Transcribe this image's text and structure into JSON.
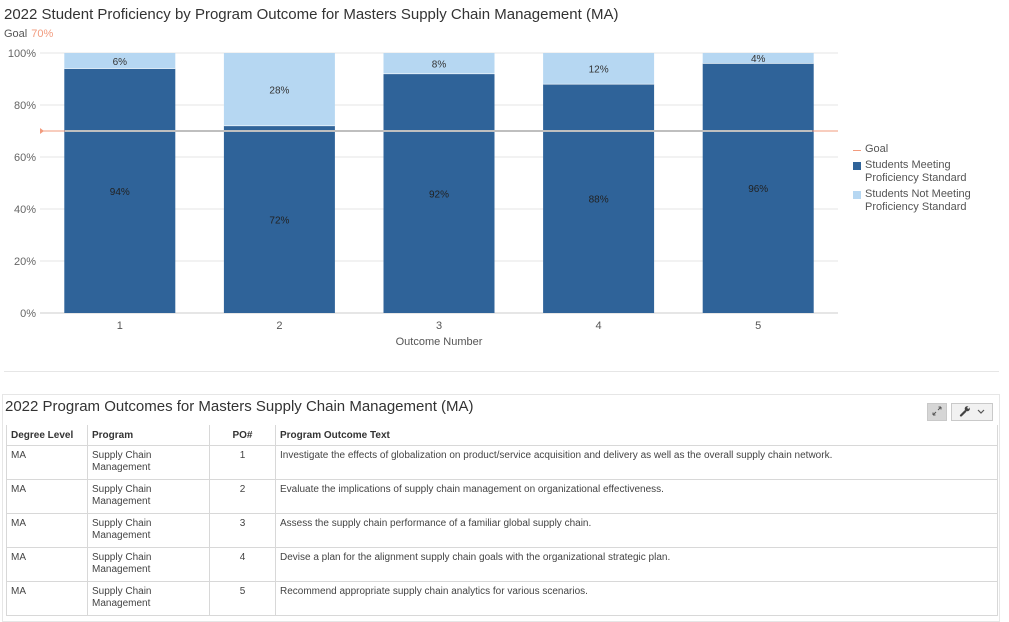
{
  "chart_title": "2022 Student Proficiency by Program Outcome for Masters Supply Chain Management (MA)",
  "goal_caption": {
    "label": "Goal",
    "value": "70%"
  },
  "chart_data": {
    "type": "bar",
    "stacked": true,
    "categories": [
      "1",
      "2",
      "3",
      "4",
      "5"
    ],
    "series": [
      {
        "name": "Students Meeting Proficiency Standard",
        "color": "#2f6399",
        "values": [
          94,
          72,
          92,
          88,
          96
        ],
        "labels": [
          "94%",
          "72%",
          "92%",
          "88%",
          "96%"
        ]
      },
      {
        "name": "Students Not Meeting Proficiency Standard",
        "color": "#b6d7f2",
        "values": [
          6,
          28,
          8,
          12,
          4
        ],
        "labels": [
          "6%",
          "28%",
          "8%",
          "12%",
          "4%"
        ]
      }
    ],
    "goal": {
      "name": "Goal",
      "value": 70,
      "color": "#f29b7e"
    },
    "xlabel": "Outcome Number",
    "ylabel": "",
    "ylim": [
      0,
      100
    ],
    "yticks": [
      0,
      20,
      40,
      60,
      80,
      100
    ],
    "ytick_labels": [
      "0%",
      "20%",
      "40%",
      "60%",
      "80%",
      "100%"
    ],
    "grid": true,
    "legend_position": "right"
  },
  "legend": {
    "goal": "Goal",
    "meeting": "Students Meeting Proficiency Standard",
    "not_meeting": "Students Not Meeting Proficiency Standard"
  },
  "table": {
    "title": "2022 Program Outcomes for Masters Supply Chain Management (MA)",
    "columns": [
      "Degree Level",
      "Program",
      "PO#",
      "Program Outcome Text"
    ],
    "rows": [
      [
        "MA",
        "Supply Chain Management",
        "1",
        "Investigate the effects of globalization on product/service acquisition and delivery as well as the overall supply chain network."
      ],
      [
        "MA",
        "Supply Chain Management",
        "2",
        "Evaluate the implications of supply chain management on organizational effectiveness."
      ],
      [
        "MA",
        "Supply Chain Management",
        "3",
        "Assess the supply chain performance of a familiar global supply chain."
      ],
      [
        "MA",
        "Supply Chain Management",
        "4",
        "Devise a plan for the alignment supply chain goals with the organizational strategic plan."
      ],
      [
        "MA",
        "Supply Chain Management",
        "5",
        "Recommend appropriate supply chain analytics for various scenarios."
      ]
    ],
    "toolbar": {
      "expand_icon": "expand-icon",
      "wrench_icon": "wrench-icon",
      "chevron_icon": "chevron-down-icon"
    }
  }
}
